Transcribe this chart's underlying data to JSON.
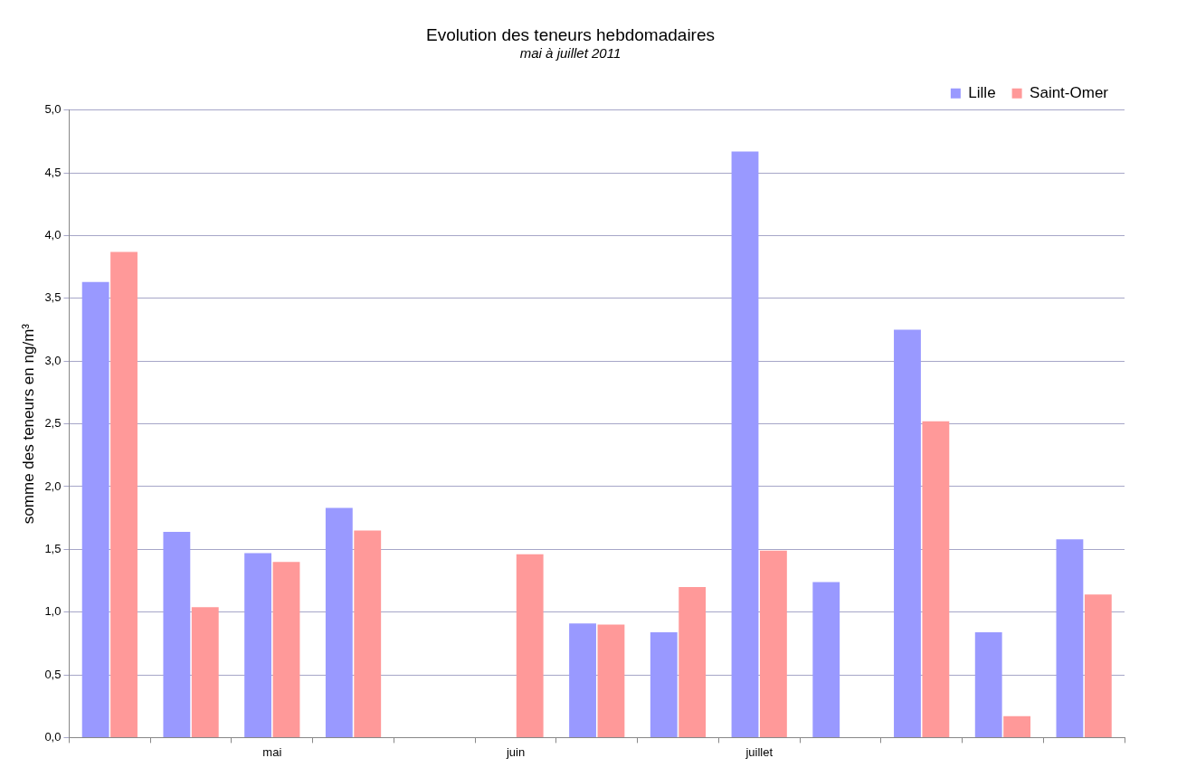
{
  "chart_data": {
    "type": "bar",
    "title": "Evolution des teneurs hebdomadaires",
    "subtitle": "mai à juillet 2011",
    "ylabel": "somme des teneurs en ng/m³",
    "categories": [
      null,
      null,
      "mai",
      null,
      null,
      "juin",
      null,
      null,
      "juillet",
      null,
      null,
      null,
      null
    ],
    "series": [
      {
        "name": "Lille",
        "color": "#9999ff",
        "values": [
          3.63,
          1.64,
          1.47,
          1.83,
          null,
          null,
          0.91,
          0.84,
          4.67,
          1.24,
          3.25,
          0.84,
          1.58
        ]
      },
      {
        "name": "Saint-Omer",
        "color": "#ff9999",
        "values": [
          3.87,
          1.04,
          1.4,
          1.65,
          null,
          1.46,
          0.9,
          1.2,
          1.49,
          null,
          2.52,
          0.17,
          1.14
        ]
      }
    ],
    "ylim": [
      0,
      5
    ],
    "yticks": [
      {
        "value": 0,
        "label": "0,0"
      },
      {
        "value": 0.5,
        "label": "0,5"
      },
      {
        "value": 1,
        "label": "1,0"
      },
      {
        "value": 1.5,
        "label": "1,5"
      },
      {
        "value": 2,
        "label": "2,0"
      },
      {
        "value": 2.5,
        "label": "2,5"
      },
      {
        "value": 3,
        "label": "3,0"
      },
      {
        "value": 3.5,
        "label": "3,5"
      },
      {
        "value": 4,
        "label": "4,0"
      },
      {
        "value": 4.5,
        "label": "4,5"
      },
      {
        "value": 5,
        "label": "5,0"
      }
    ],
    "grid": "y",
    "legend": "top right"
  }
}
